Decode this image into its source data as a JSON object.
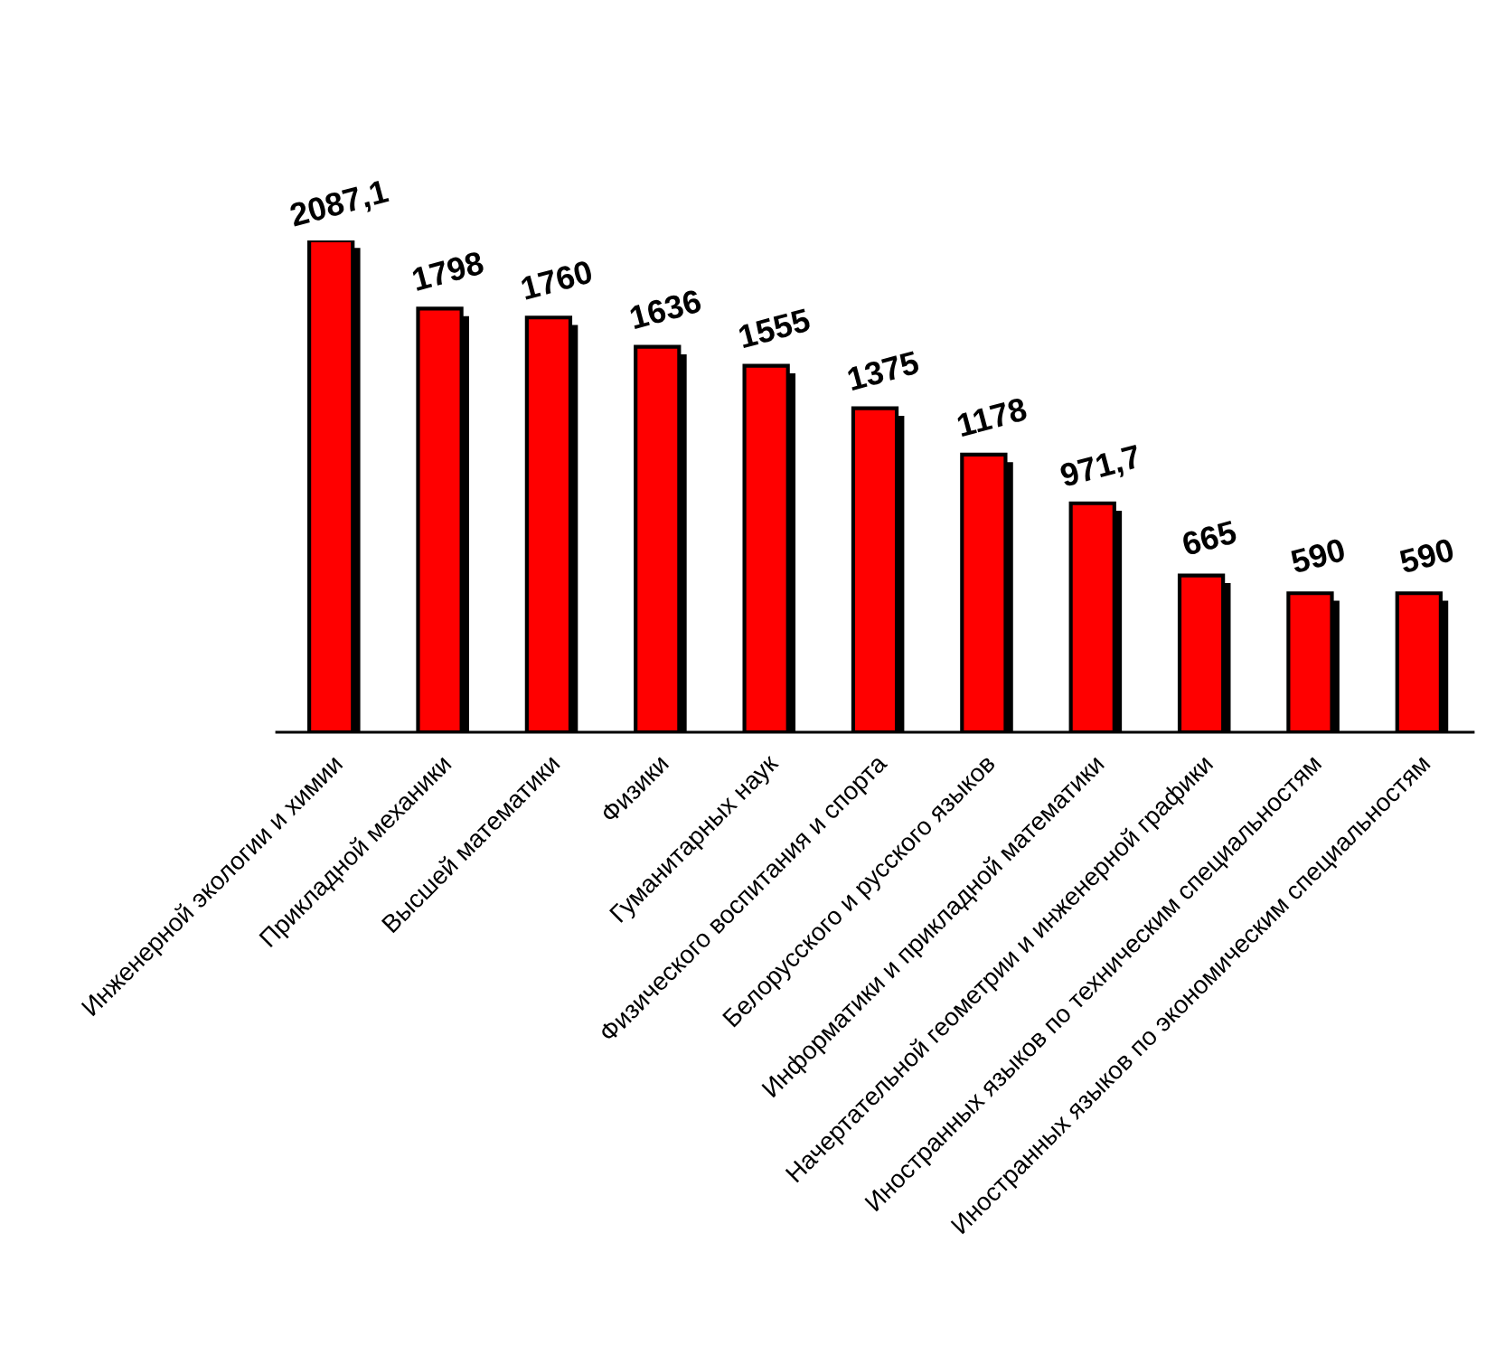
{
  "chart_data": {
    "type": "bar",
    "categories": [
      "Инженерной экологии и химии",
      "Прикладной механики",
      "Высшей математики",
      "Физики",
      "Гуманитарных наук",
      "Физического воспитания и спорта",
      "Белорусского и русского языков",
      "Информатики и прикладной математики",
      "Начертательной геометрии и инженерной графики",
      "Иностранных языков по техническим специальностям",
      "Иностранных языков по экономическим специальностям"
    ],
    "values": [
      2087.1,
      1798,
      1760,
      1636,
      1555,
      1375,
      1178,
      971.7,
      665,
      590,
      590
    ],
    "value_labels": [
      "2087,1",
      "1798",
      "1760",
      "1636",
      "1555",
      "1375",
      "1178",
      "971,7",
      "665",
      "590",
      "590"
    ],
    "color": "#ff0000"
  }
}
